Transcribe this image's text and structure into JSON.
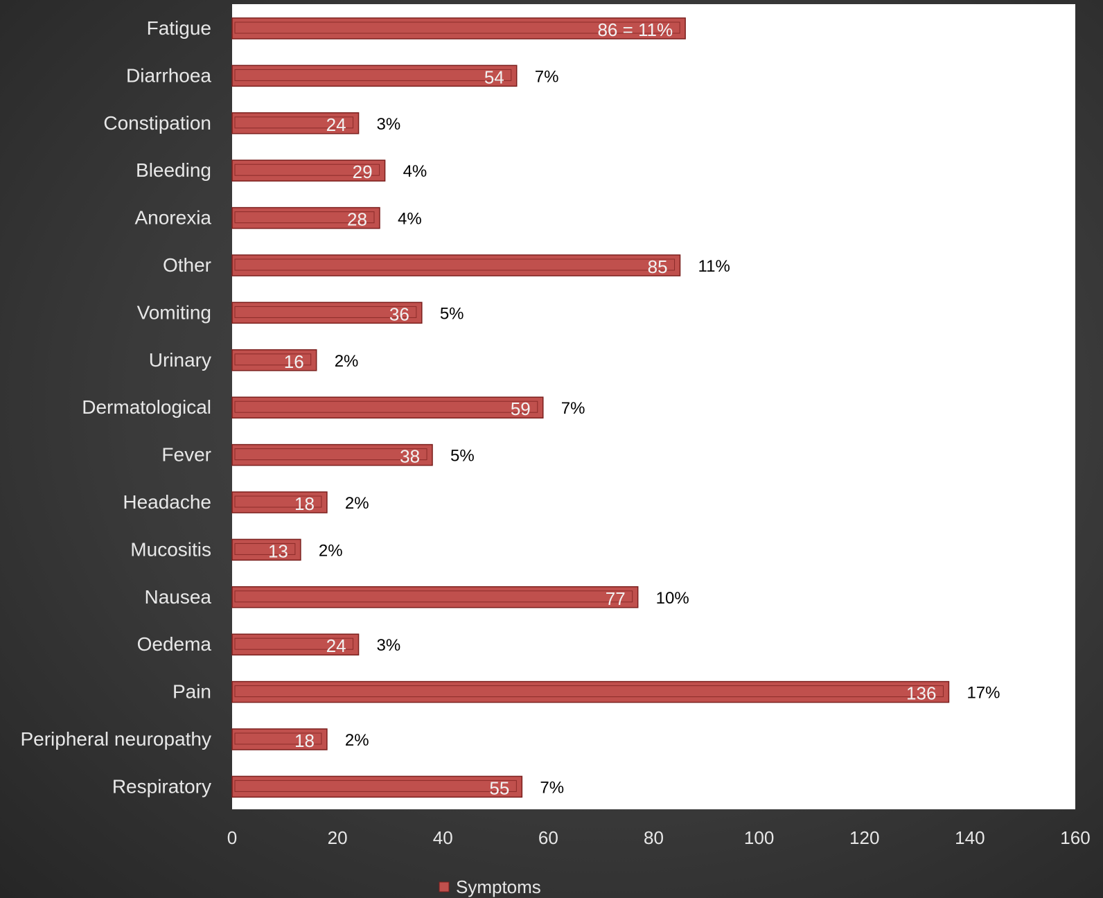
{
  "chart_data": {
    "type": "bar",
    "orientation": "horizontal",
    "title": "",
    "xlabel": "",
    "ylabel": "",
    "categories": [
      "Fatigue",
      "Diarrhoea",
      "Constipation",
      "Bleeding",
      "Anorexia",
      "Other",
      "Vomiting",
      "Urinary",
      "Dermatological",
      "Fever",
      "Headache",
      "Mucositis",
      "Nausea",
      "Oedema",
      "Pain",
      "Peripheral neuropathy",
      "Respiratory"
    ],
    "series": [
      {
        "name": "Symptoms",
        "values": [
          86,
          54,
          24,
          29,
          28,
          85,
          36,
          16,
          59,
          38,
          18,
          13,
          77,
          24,
          136,
          18,
          55
        ],
        "data_labels": [
          "86 = 11%",
          "54",
          "24",
          "29",
          "28",
          "85",
          "36",
          "16",
          "59",
          "38",
          "18",
          "13",
          "77",
          "24",
          "136",
          "18",
          "55"
        ],
        "percent_labels": [
          "",
          "7%",
          "3%",
          "4%",
          "4%",
          "11%",
          "5%",
          "2%",
          "7%",
          "5%",
          "2%",
          "2%",
          "10%",
          "3%",
          "17%",
          "2%",
          "7%"
        ],
        "color": "#c0504d"
      }
    ],
    "xlim": [
      0,
      160
    ],
    "xticks": [
      0,
      20,
      40,
      60,
      80,
      100,
      120,
      140,
      160
    ],
    "grid": false,
    "legend": {
      "position": "bottom",
      "entries": [
        "Symptoms"
      ]
    },
    "colors": {
      "bar": "#c0504d",
      "bar_edge": "#7a1f1d",
      "plot_bg": "#ffffff",
      "page_bg": "#3a3a3a",
      "axis_text": "#e8e8e8",
      "annotation_text": "#000000",
      "data_label_text": "#f2f2f2"
    }
  }
}
